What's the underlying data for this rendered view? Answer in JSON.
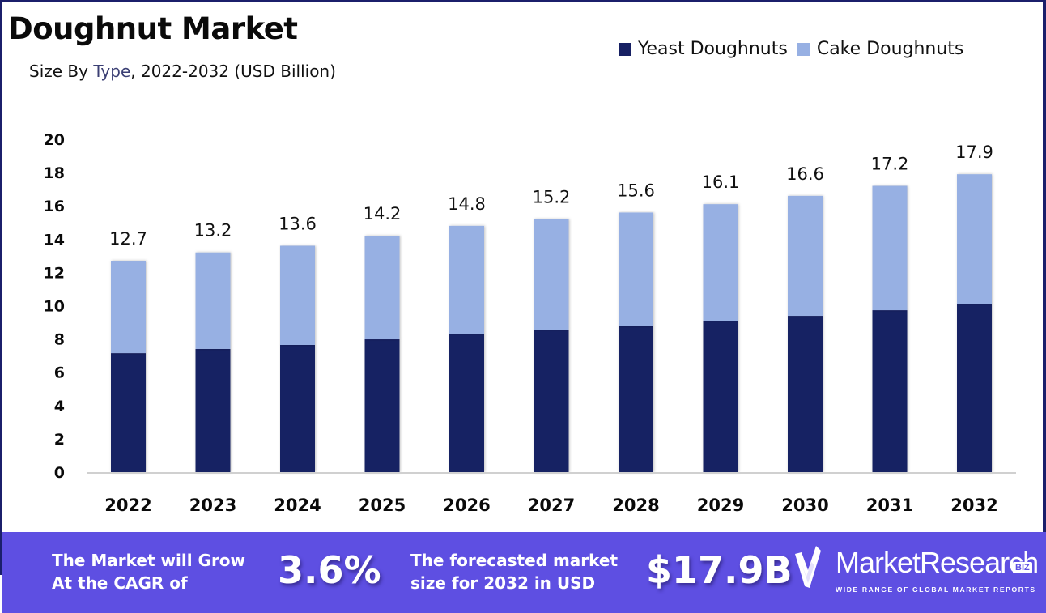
{
  "header": {
    "title": "Doughnut Market",
    "subtitle_prefix": "Size By ",
    "subtitle_accent": "Type",
    "subtitle_suffix": ", 2022-2032 (USD Billion)"
  },
  "legend": [
    {
      "label": "Yeast Doughnuts",
      "color": "#172063"
    },
    {
      "label": "Cake Doughnuts",
      "color": "#97b0e3"
    }
  ],
  "chart_data": {
    "type": "bar",
    "stacked": true,
    "title": "Doughnut Market",
    "subtitle": "Size By Type, 2022-2032 (USD Billion)",
    "xlabel": "",
    "ylabel": "",
    "categories": [
      "2022",
      "2023",
      "2024",
      "2025",
      "2026",
      "2027",
      "2028",
      "2029",
      "2030",
      "2031",
      "2032"
    ],
    "series": [
      {
        "name": "Yeast Doughnuts",
        "color": "#172063",
        "values": [
          7.15,
          7.4,
          7.64,
          7.98,
          8.32,
          8.56,
          8.76,
          9.1,
          9.39,
          9.73,
          10.12
        ]
      },
      {
        "name": "Cake Doughnuts",
        "color": "#97b0e3",
        "values": [
          5.55,
          5.8,
          5.96,
          6.22,
          6.48,
          6.64,
          6.84,
          7.0,
          7.21,
          7.47,
          7.78
        ]
      }
    ],
    "totals": [
      12.7,
      13.2,
      13.6,
      14.2,
      14.8,
      15.2,
      15.6,
      16.1,
      16.6,
      17.2,
      17.9
    ],
    "total_labels": [
      "12.7",
      "13.2",
      "13.6",
      "14.2",
      "14.8",
      "15.2",
      "15.6",
      "16.1",
      "16.6",
      "17.2",
      "17.9"
    ],
    "ylim": [
      0,
      20
    ],
    "yticks": [
      0,
      2,
      4,
      6,
      8,
      10,
      12,
      14,
      16,
      18,
      20
    ],
    "grid": false,
    "legend_position": "top-right"
  },
  "footer": {
    "cagr_text_line1": "The Market will Grow",
    "cagr_text_line2": "At the CAGR of",
    "cagr_value": "3.6%",
    "forecast_text_line1": "The forecasted market",
    "forecast_text_line2": "size for 2032 in USD",
    "forecast_value": "$17.9B",
    "brand_name": "MarketResearch",
    "brand_suffix": "BIZ",
    "brand_tagline": "WIDE RANGE OF GLOBAL MARKET REPORTS"
  }
}
